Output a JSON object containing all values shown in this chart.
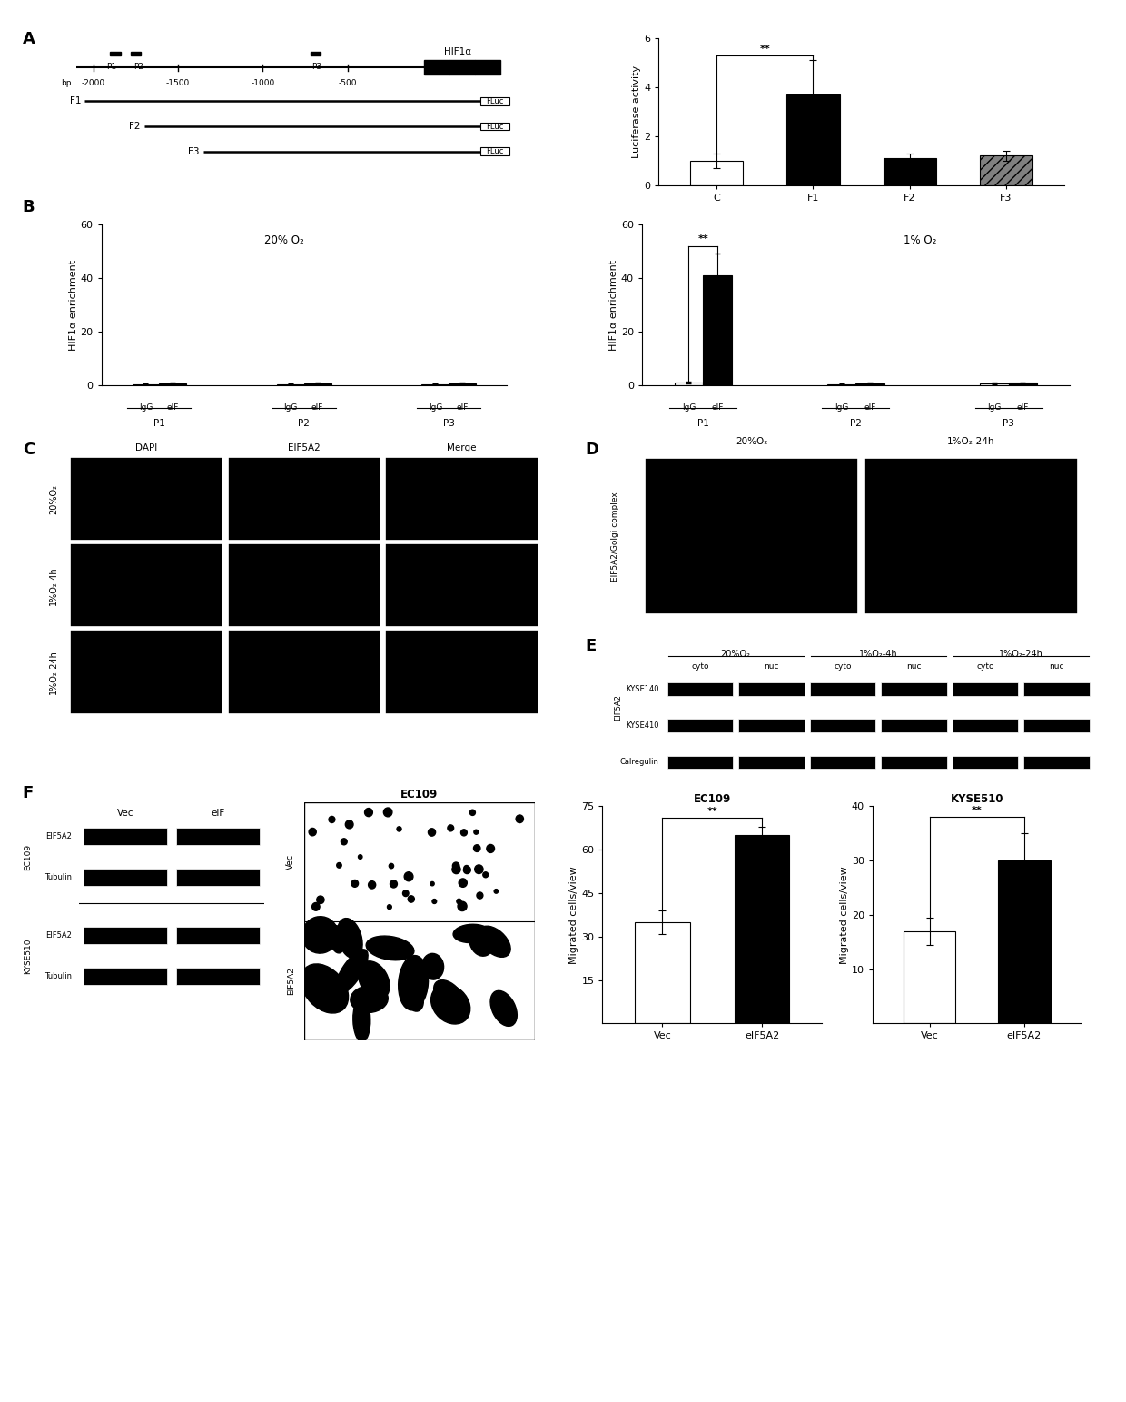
{
  "panel_A_bar": {
    "categories": [
      "C",
      "F1",
      "F2",
      "F3"
    ],
    "values": [
      1.0,
      3.7,
      1.1,
      1.2
    ],
    "errors": [
      0.3,
      1.4,
      0.2,
      0.2
    ],
    "colors": [
      "white",
      "black",
      "black",
      "gray"
    ],
    "hatches": [
      "",
      "",
      "",
      "///"
    ],
    "ylabel": "Luciferase activity",
    "ylim": [
      0,
      6
    ],
    "yticks": [
      0,
      2,
      4,
      6
    ],
    "sig_label": "**"
  },
  "panel_B_left": {
    "title": "20% O₂",
    "ylabel": "HIF1α enrichment",
    "ylim": [
      0,
      60
    ],
    "yticks": [
      0,
      20,
      40,
      60
    ],
    "groups": [
      "P1",
      "P2",
      "P3"
    ],
    "IgG_values": [
      0.5,
      0.5,
      0.5
    ],
    "eIF_values": [
      0.8,
      0.8,
      0.8
    ],
    "IgG_errors": [
      0.2,
      0.2,
      0.2
    ],
    "eIF_errors": [
      0.2,
      0.2,
      0.2
    ]
  },
  "panel_B_right": {
    "title": "1% O₂",
    "ylabel": "HIF1α enrichment",
    "ylim": [
      0,
      60
    ],
    "yticks": [
      0,
      20,
      40,
      60
    ],
    "groups": [
      "P1",
      "P2",
      "P3"
    ],
    "IgG_values": [
      1.0,
      0.5,
      0.8
    ],
    "eIF_values": [
      41.0,
      0.8,
      1.0
    ],
    "IgG_errors": [
      0.3,
      0.2,
      0.2
    ],
    "eIF_errors": [
      8.0,
      0.2,
      0.2
    ],
    "sig_label": "**"
  },
  "panel_F_EC109": {
    "title": "EC109",
    "categories": [
      "Vec",
      "eIF5A2"
    ],
    "values": [
      35.0,
      65.0
    ],
    "errors": [
      4.0,
      3.0
    ],
    "colors": [
      "white",
      "black"
    ],
    "ylabel": "Migrated cells/view",
    "ylim": [
      0,
      75
    ],
    "yticks": [
      15,
      30,
      45,
      60,
      75
    ],
    "sig_label": "**"
  },
  "panel_F_KYSE510": {
    "title": "KYSE510",
    "categories": [
      "Vec",
      "eIF5A2"
    ],
    "values": [
      17.0,
      30.0
    ],
    "errors": [
      2.5,
      5.0
    ],
    "colors": [
      "white",
      "black"
    ],
    "ylabel": "Migrated cells/view",
    "ylim": [
      0,
      40
    ],
    "yticks": [
      10,
      20,
      30,
      40
    ],
    "sig_label": "**"
  },
  "bg_color": "#ffffff",
  "font_size": 8,
  "panel_label_size": 13
}
